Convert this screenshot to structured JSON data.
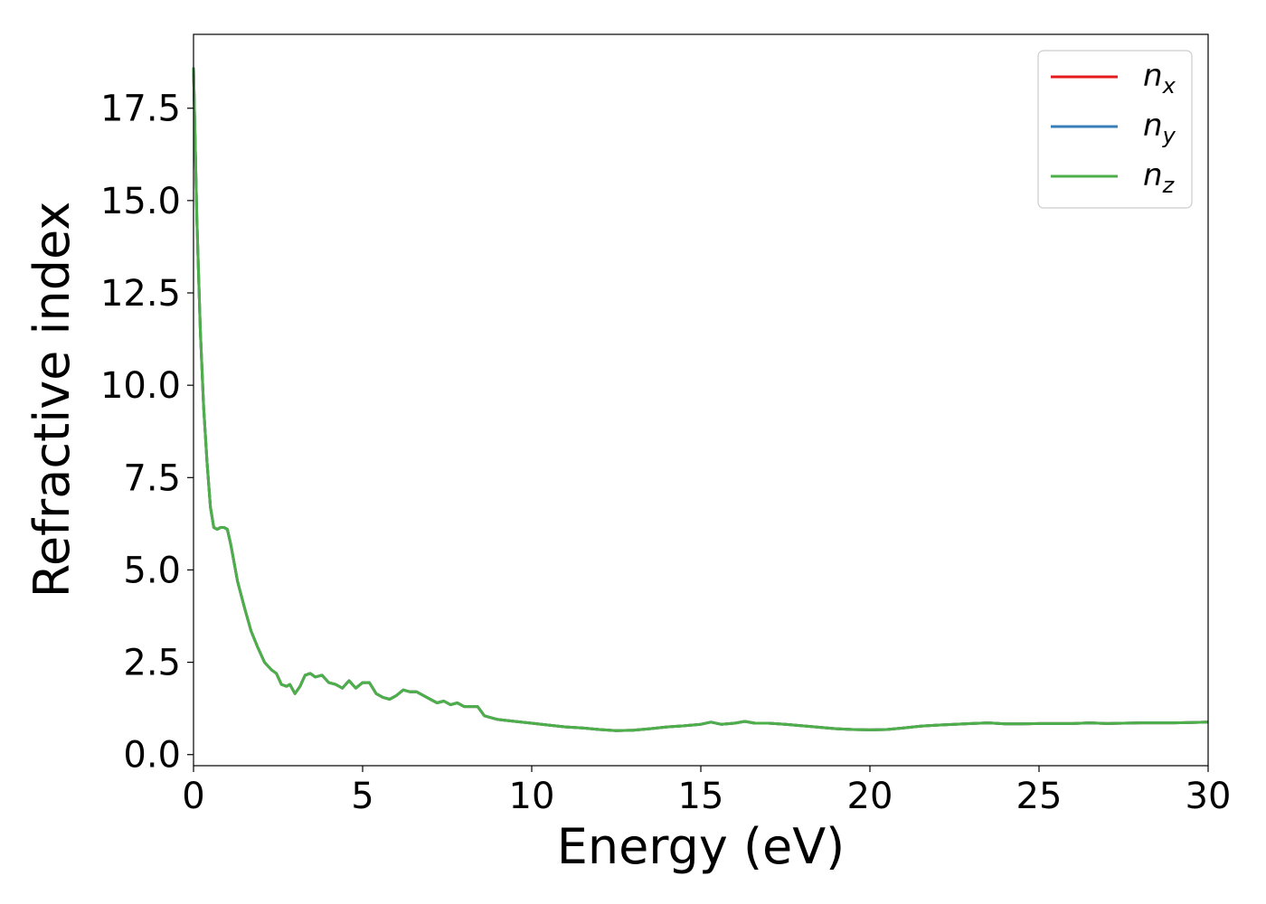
{
  "chart_data": {
    "type": "line",
    "title": "",
    "xlabel": "Energy (eV)",
    "ylabel": "Refractive index",
    "xlim": [
      0,
      30
    ],
    "ylim": [
      -0.3,
      19.5
    ],
    "xticks": [
      "0",
      "5",
      "10",
      "15",
      "20",
      "25",
      "30"
    ],
    "yticks": [
      "0.0",
      "2.5",
      "5.0",
      "7.5",
      "10.0",
      "12.5",
      "15.0",
      "17.5"
    ],
    "grid": false,
    "legend_position": "top-right",
    "colors": {
      "nx": "#e41a1c",
      "ny": "#377eb8",
      "nz": "#4daf4a"
    },
    "series": [
      {
        "name": "n",
        "subscript": "x",
        "color": "#e41a1c",
        "points": [
          [
            0,
            18.6
          ],
          [
            0.1,
            14.5
          ],
          [
            0.2,
            11.5
          ],
          [
            0.3,
            9.4
          ],
          [
            0.4,
            7.9
          ],
          [
            0.5,
            6.7
          ],
          [
            0.6,
            6.15
          ],
          [
            0.7,
            6.1
          ],
          [
            0.8,
            6.15
          ],
          [
            0.9,
            6.15
          ],
          [
            1.0,
            6.1
          ],
          [
            1.1,
            5.7
          ],
          [
            1.2,
            5.2
          ],
          [
            1.3,
            4.7
          ],
          [
            1.5,
            4.0
          ],
          [
            1.7,
            3.35
          ],
          [
            1.9,
            2.9
          ],
          [
            2.1,
            2.5
          ],
          [
            2.3,
            2.3
          ],
          [
            2.45,
            2.2
          ],
          [
            2.6,
            1.9
          ],
          [
            2.75,
            1.85
          ],
          [
            2.85,
            1.9
          ],
          [
            3.0,
            1.65
          ],
          [
            3.15,
            1.85
          ],
          [
            3.3,
            2.15
          ],
          [
            3.45,
            2.2
          ],
          [
            3.6,
            2.1
          ],
          [
            3.8,
            2.15
          ],
          [
            4.0,
            1.95
          ],
          [
            4.2,
            1.9
          ],
          [
            4.4,
            1.8
          ],
          [
            4.6,
            2.0
          ],
          [
            4.8,
            1.8
          ],
          [
            5.0,
            1.95
          ],
          [
            5.2,
            1.95
          ],
          [
            5.4,
            1.65
          ],
          [
            5.6,
            1.55
          ],
          [
            5.8,
            1.5
          ],
          [
            6.0,
            1.6
          ],
          [
            6.2,
            1.75
          ],
          [
            6.4,
            1.7
          ],
          [
            6.6,
            1.7
          ],
          [
            6.8,
            1.6
          ],
          [
            7.0,
            1.5
          ],
          [
            7.2,
            1.4
          ],
          [
            7.4,
            1.45
          ],
          [
            7.6,
            1.35
          ],
          [
            7.8,
            1.4
          ],
          [
            8.0,
            1.3
          ],
          [
            8.2,
            1.3
          ],
          [
            8.4,
            1.3
          ],
          [
            8.6,
            1.05
          ],
          [
            8.8,
            1.0
          ],
          [
            9.0,
            0.95
          ],
          [
            9.5,
            0.9
          ],
          [
            10.0,
            0.85
          ],
          [
            10.5,
            0.8
          ],
          [
            11.0,
            0.75
          ],
          [
            11.5,
            0.72
          ],
          [
            12.0,
            0.68
          ],
          [
            12.5,
            0.65
          ],
          [
            13.0,
            0.66
          ],
          [
            13.5,
            0.7
          ],
          [
            14.0,
            0.75
          ],
          [
            14.5,
            0.78
          ],
          [
            15.0,
            0.82
          ],
          [
            15.3,
            0.88
          ],
          [
            15.6,
            0.82
          ],
          [
            16.0,
            0.85
          ],
          [
            16.3,
            0.9
          ],
          [
            16.6,
            0.85
          ],
          [
            17.0,
            0.85
          ],
          [
            17.5,
            0.82
          ],
          [
            18.0,
            0.78
          ],
          [
            18.5,
            0.74
          ],
          [
            19.0,
            0.7
          ],
          [
            19.5,
            0.68
          ],
          [
            20.0,
            0.67
          ],
          [
            20.5,
            0.68
          ],
          [
            21.0,
            0.72
          ],
          [
            21.5,
            0.77
          ],
          [
            22.0,
            0.8
          ],
          [
            22.5,
            0.82
          ],
          [
            23.0,
            0.84
          ],
          [
            23.5,
            0.86
          ],
          [
            24.0,
            0.83
          ],
          [
            24.5,
            0.83
          ],
          [
            25.0,
            0.84
          ],
          [
            25.5,
            0.84
          ],
          [
            26.0,
            0.84
          ],
          [
            26.5,
            0.86
          ],
          [
            27.0,
            0.84
          ],
          [
            27.5,
            0.85
          ],
          [
            28.0,
            0.86
          ],
          [
            28.5,
            0.86
          ],
          [
            29.0,
            0.86
          ],
          [
            29.5,
            0.87
          ],
          [
            30.0,
            0.88
          ]
        ]
      },
      {
        "name": "n",
        "subscript": "y",
        "color": "#377eb8",
        "points": [
          [
            0,
            18.6
          ],
          [
            0.1,
            14.5
          ],
          [
            0.2,
            11.5
          ],
          [
            0.3,
            9.4
          ],
          [
            0.4,
            7.9
          ],
          [
            0.5,
            6.7
          ],
          [
            0.6,
            6.15
          ],
          [
            0.7,
            6.1
          ],
          [
            0.8,
            6.15
          ],
          [
            0.9,
            6.15
          ],
          [
            1.0,
            6.1
          ],
          [
            1.1,
            5.7
          ],
          [
            1.2,
            5.2
          ],
          [
            1.3,
            4.7
          ],
          [
            1.5,
            4.0
          ],
          [
            1.7,
            3.35
          ],
          [
            1.9,
            2.9
          ],
          [
            2.1,
            2.5
          ],
          [
            2.3,
            2.3
          ],
          [
            2.45,
            2.2
          ],
          [
            2.6,
            1.9
          ],
          [
            2.75,
            1.85
          ],
          [
            2.85,
            1.9
          ],
          [
            3.0,
            1.65
          ],
          [
            3.15,
            1.85
          ],
          [
            3.3,
            2.15
          ],
          [
            3.45,
            2.2
          ],
          [
            3.6,
            2.1
          ],
          [
            3.8,
            2.15
          ],
          [
            4.0,
            1.95
          ],
          [
            4.2,
            1.9
          ],
          [
            4.4,
            1.8
          ],
          [
            4.6,
            2.0
          ],
          [
            4.8,
            1.8
          ],
          [
            5.0,
            1.95
          ],
          [
            5.2,
            1.95
          ],
          [
            5.4,
            1.65
          ],
          [
            5.6,
            1.55
          ],
          [
            5.8,
            1.5
          ],
          [
            6.0,
            1.6
          ],
          [
            6.2,
            1.75
          ],
          [
            6.4,
            1.7
          ],
          [
            6.6,
            1.7
          ],
          [
            6.8,
            1.6
          ],
          [
            7.0,
            1.5
          ],
          [
            7.2,
            1.4
          ],
          [
            7.4,
            1.45
          ],
          [
            7.6,
            1.35
          ],
          [
            7.8,
            1.4
          ],
          [
            8.0,
            1.3
          ],
          [
            8.2,
            1.3
          ],
          [
            8.4,
            1.3
          ],
          [
            8.6,
            1.05
          ],
          [
            8.8,
            1.0
          ],
          [
            9.0,
            0.95
          ],
          [
            9.5,
            0.9
          ],
          [
            10.0,
            0.85
          ],
          [
            10.5,
            0.8
          ],
          [
            11.0,
            0.75
          ],
          [
            11.5,
            0.72
          ],
          [
            12.0,
            0.68
          ],
          [
            12.5,
            0.65
          ],
          [
            13.0,
            0.66
          ],
          [
            13.5,
            0.7
          ],
          [
            14.0,
            0.75
          ],
          [
            14.5,
            0.78
          ],
          [
            15.0,
            0.82
          ],
          [
            15.3,
            0.88
          ],
          [
            15.6,
            0.82
          ],
          [
            16.0,
            0.85
          ],
          [
            16.3,
            0.9
          ],
          [
            16.6,
            0.85
          ],
          [
            17.0,
            0.85
          ],
          [
            17.5,
            0.82
          ],
          [
            18.0,
            0.78
          ],
          [
            18.5,
            0.74
          ],
          [
            19.0,
            0.7
          ],
          [
            19.5,
            0.68
          ],
          [
            20.0,
            0.67
          ],
          [
            20.5,
            0.68
          ],
          [
            21.0,
            0.72
          ],
          [
            21.5,
            0.77
          ],
          [
            22.0,
            0.8
          ],
          [
            22.5,
            0.82
          ],
          [
            23.0,
            0.84
          ],
          [
            23.5,
            0.86
          ],
          [
            24.0,
            0.83
          ],
          [
            24.5,
            0.83
          ],
          [
            25.0,
            0.84
          ],
          [
            25.5,
            0.84
          ],
          [
            26.0,
            0.84
          ],
          [
            26.5,
            0.86
          ],
          [
            27.0,
            0.84
          ],
          [
            27.5,
            0.85
          ],
          [
            28.0,
            0.86
          ],
          [
            28.5,
            0.86
          ],
          [
            29.0,
            0.86
          ],
          [
            29.5,
            0.87
          ],
          [
            30.0,
            0.88
          ]
        ]
      },
      {
        "name": "n",
        "subscript": "z",
        "color": "#4daf4a",
        "points": [
          [
            0,
            18.6
          ],
          [
            0.1,
            14.5
          ],
          [
            0.2,
            11.5
          ],
          [
            0.3,
            9.4
          ],
          [
            0.4,
            7.9
          ],
          [
            0.5,
            6.7
          ],
          [
            0.6,
            6.15
          ],
          [
            0.7,
            6.1
          ],
          [
            0.8,
            6.15
          ],
          [
            0.9,
            6.15
          ],
          [
            1.0,
            6.1
          ],
          [
            1.1,
            5.7
          ],
          [
            1.2,
            5.2
          ],
          [
            1.3,
            4.7
          ],
          [
            1.5,
            4.0
          ],
          [
            1.7,
            3.35
          ],
          [
            1.9,
            2.9
          ],
          [
            2.1,
            2.5
          ],
          [
            2.3,
            2.3
          ],
          [
            2.45,
            2.2
          ],
          [
            2.6,
            1.9
          ],
          [
            2.75,
            1.85
          ],
          [
            2.85,
            1.9
          ],
          [
            3.0,
            1.65
          ],
          [
            3.15,
            1.85
          ],
          [
            3.3,
            2.15
          ],
          [
            3.45,
            2.2
          ],
          [
            3.6,
            2.1
          ],
          [
            3.8,
            2.15
          ],
          [
            4.0,
            1.95
          ],
          [
            4.2,
            1.9
          ],
          [
            4.4,
            1.8
          ],
          [
            4.6,
            2.0
          ],
          [
            4.8,
            1.8
          ],
          [
            5.0,
            1.95
          ],
          [
            5.2,
            1.95
          ],
          [
            5.4,
            1.65
          ],
          [
            5.6,
            1.55
          ],
          [
            5.8,
            1.5
          ],
          [
            6.0,
            1.6
          ],
          [
            6.2,
            1.75
          ],
          [
            6.4,
            1.7
          ],
          [
            6.6,
            1.7
          ],
          [
            6.8,
            1.6
          ],
          [
            7.0,
            1.5
          ],
          [
            7.2,
            1.4
          ],
          [
            7.4,
            1.45
          ],
          [
            7.6,
            1.35
          ],
          [
            7.8,
            1.4
          ],
          [
            8.0,
            1.3
          ],
          [
            8.2,
            1.3
          ],
          [
            8.4,
            1.3
          ],
          [
            8.6,
            1.05
          ],
          [
            8.8,
            1.0
          ],
          [
            9.0,
            0.95
          ],
          [
            9.5,
            0.9
          ],
          [
            10.0,
            0.85
          ],
          [
            10.5,
            0.8
          ],
          [
            11.0,
            0.75
          ],
          [
            11.5,
            0.72
          ],
          [
            12.0,
            0.68
          ],
          [
            12.5,
            0.65
          ],
          [
            13.0,
            0.66
          ],
          [
            13.5,
            0.7
          ],
          [
            14.0,
            0.75
          ],
          [
            14.5,
            0.78
          ],
          [
            15.0,
            0.82
          ],
          [
            15.3,
            0.88
          ],
          [
            15.6,
            0.82
          ],
          [
            16.0,
            0.85
          ],
          [
            16.3,
            0.9
          ],
          [
            16.6,
            0.85
          ],
          [
            17.0,
            0.85
          ],
          [
            17.5,
            0.82
          ],
          [
            18.0,
            0.78
          ],
          [
            18.5,
            0.74
          ],
          [
            19.0,
            0.7
          ],
          [
            19.5,
            0.68
          ],
          [
            20.0,
            0.67
          ],
          [
            20.5,
            0.68
          ],
          [
            21.0,
            0.72
          ],
          [
            21.5,
            0.77
          ],
          [
            22.0,
            0.8
          ],
          [
            22.5,
            0.82
          ],
          [
            23.0,
            0.84
          ],
          [
            23.5,
            0.86
          ],
          [
            24.0,
            0.83
          ],
          [
            24.5,
            0.83
          ],
          [
            25.0,
            0.84
          ],
          [
            25.5,
            0.84
          ],
          [
            26.0,
            0.84
          ],
          [
            26.5,
            0.86
          ],
          [
            27.0,
            0.84
          ],
          [
            27.5,
            0.85
          ],
          [
            28.0,
            0.86
          ],
          [
            28.5,
            0.86
          ],
          [
            29.0,
            0.86
          ],
          [
            29.5,
            0.87
          ],
          [
            30.0,
            0.88
          ]
        ]
      }
    ]
  }
}
